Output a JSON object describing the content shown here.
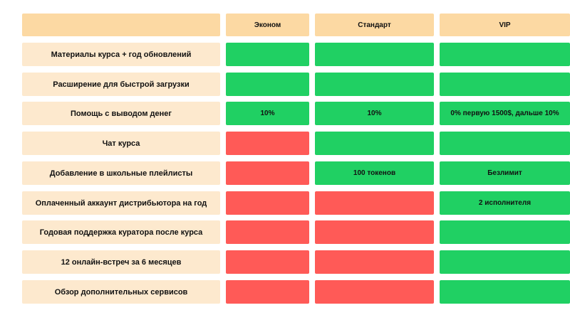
{
  "table": {
    "columns": [
      "Эконом",
      "Стандарт",
      "VIP"
    ],
    "rows": [
      {
        "feature": "Материалы курса + год обновлений",
        "cells": [
          {
            "status": "included",
            "text": ""
          },
          {
            "status": "included",
            "text": ""
          },
          {
            "status": "included",
            "text": ""
          }
        ]
      },
      {
        "feature": "Расширение для быстрой загрузки",
        "cells": [
          {
            "status": "included",
            "text": ""
          },
          {
            "status": "included",
            "text": ""
          },
          {
            "status": "included",
            "text": ""
          }
        ]
      },
      {
        "feature": "Помощь с выводом денег",
        "cells": [
          {
            "status": "included",
            "text": "10%"
          },
          {
            "status": "included",
            "text": "10%"
          },
          {
            "status": "included",
            "text": "0% первую 1500$, дальше 10%"
          }
        ]
      },
      {
        "feature": "Чат курса",
        "cells": [
          {
            "status": "excluded",
            "text": ""
          },
          {
            "status": "included",
            "text": ""
          },
          {
            "status": "included",
            "text": ""
          }
        ]
      },
      {
        "feature": "Добавление в школьные плейлисты",
        "cells": [
          {
            "status": "excluded",
            "text": ""
          },
          {
            "status": "included",
            "text": "100 токенов"
          },
          {
            "status": "included",
            "text": "Безлимит"
          }
        ]
      },
      {
        "feature": "Оплаченный аккаунт дистрибьютора на год",
        "cells": [
          {
            "status": "excluded",
            "text": ""
          },
          {
            "status": "excluded",
            "text": ""
          },
          {
            "status": "included",
            "text": "2 исполнителя"
          }
        ]
      },
      {
        "feature": "Годовая поддержка куратора после курса",
        "cells": [
          {
            "status": "excluded",
            "text": ""
          },
          {
            "status": "excluded",
            "text": ""
          },
          {
            "status": "included",
            "text": ""
          }
        ]
      },
      {
        "feature": "12 онлайн-встреч за 6 месяцев",
        "cells": [
          {
            "status": "excluded",
            "text": ""
          },
          {
            "status": "excluded",
            "text": ""
          },
          {
            "status": "included",
            "text": ""
          }
        ]
      },
      {
        "feature": "Обзор дополнительных сервисов",
        "cells": [
          {
            "status": "excluded",
            "text": ""
          },
          {
            "status": "excluded",
            "text": ""
          },
          {
            "status": "included",
            "text": ""
          }
        ]
      }
    ]
  },
  "colors": {
    "header": "#fcd9a3",
    "label": "#fde9ce",
    "included": "#20d063",
    "excluded": "#ff5a57"
  }
}
